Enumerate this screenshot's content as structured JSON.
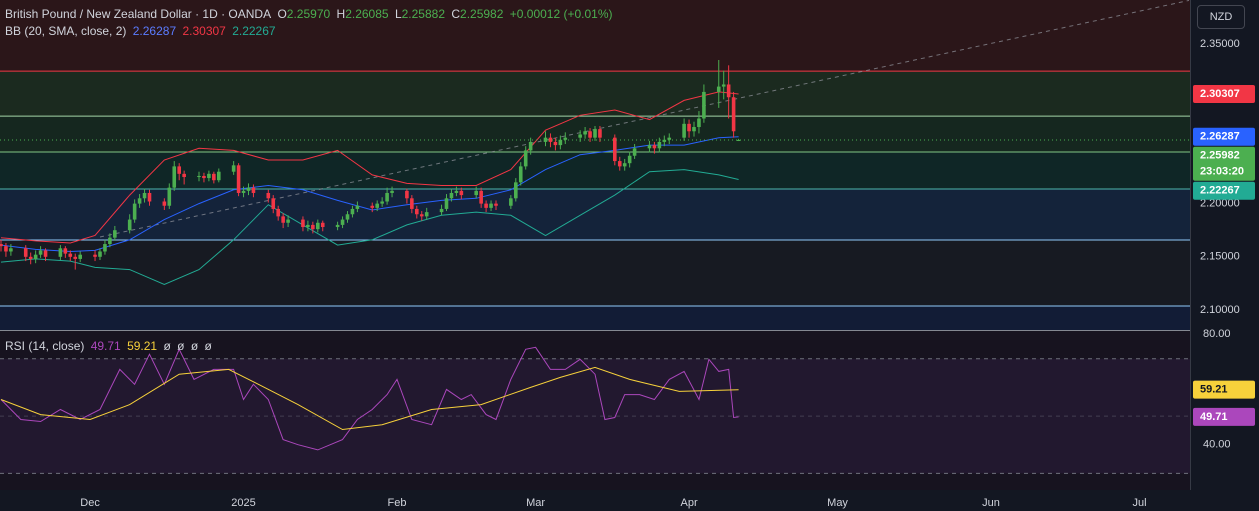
{
  "chart_data": [
    {
      "type": "candlestick",
      "title": "British Pound / New Zealand Dollar · 1D · OANDA",
      "ohlc_names": [
        "O",
        "H",
        "L",
        "C"
      ],
      "ohlc_values": [
        2.2597,
        2.26085,
        2.25882,
        2.25982
      ],
      "ohlc_value_labels": [
        "2.25970",
        "2.26085",
        "2.25882",
        "2.25982"
      ],
      "change": "+0.00012 (+0.01%)",
      "indicator": "BB (20, SMA, close, 2)",
      "currency": "NZD",
      "countdown": "23:03:20",
      "up_color": "#4caf50",
      "down_color": "#f23645",
      "xlim": [
        -18.2,
        222.2
      ],
      "ylim": [
        2.0812,
        2.3914
      ],
      "yticks": [
        {
          "value": 2.35,
          "label": "2.35000"
        },
        {
          "value": 2.2,
          "label": "2.20000"
        },
        {
          "value": 2.15,
          "label": "2.15000"
        },
        {
          "value": 2.1,
          "label": "2.10000"
        }
      ],
      "levels": [
        2.3246,
        2.2823,
        2.2485,
        2.2137,
        2.1658,
        2.1038
      ],
      "level_colors": [
        "#f23645",
        "#a5d6a7",
        "#81c784",
        "#4db6ac",
        "#90caf9",
        "#90caf9"
      ],
      "zone_colors": [
        "#2b1619",
        "#1b2a1f",
        "#15271f",
        "#0f2626",
        "#14233a",
        "#171a22",
        "#121c36"
      ],
      "trendline": [
        [
          2,
          2.1686
        ],
        [
          222,
          2.391
        ]
      ],
      "candles": [
        [
          -18,
          2.162,
          2.166,
          2.155,
          2.16
        ],
        [
          -17,
          2.16,
          2.163,
          2.15,
          2.155
        ],
        [
          -16,
          2.155,
          2.162,
          2.151,
          2.158
        ],
        [
          -13,
          2.158,
          2.161,
          2.146,
          2.15
        ],
        [
          -12,
          2.15,
          2.154,
          2.143,
          2.148
        ],
        [
          -11,
          2.148,
          2.156,
          2.144,
          2.152
        ],
        [
          -10,
          2.152,
          2.16,
          2.149,
          2.156
        ],
        [
          -9,
          2.156,
          2.158,
          2.146,
          2.15
        ],
        [
          -6,
          2.15,
          2.161,
          2.147,
          2.158
        ],
        [
          -5,
          2.158,
          2.16,
          2.149,
          2.153
        ],
        [
          -4,
          2.153,
          2.156,
          2.146,
          2.15
        ],
        [
          -3,
          2.15,
          2.153,
          2.138,
          2.148
        ],
        [
          -2,
          2.148,
          2.155,
          2.145,
          2.152
        ],
        [
          1,
          2.152,
          2.156,
          2.146,
          2.15
        ],
        [
          2,
          2.15,
          2.158,
          2.147,
          2.155
        ],
        [
          3,
          2.155,
          2.166,
          2.152,
          2.162
        ],
        [
          4,
          2.162,
          2.172,
          2.159,
          2.168
        ],
        [
          5,
          2.168,
          2.179,
          2.165,
          2.175
        ],
        [
          8,
          2.175,
          2.19,
          2.172,
          2.185
        ],
        [
          9,
          2.185,
          2.204,
          2.182,
          2.2
        ],
        [
          10,
          2.2,
          2.209,
          2.196,
          2.205
        ],
        [
          11,
          2.205,
          2.214,
          2.201,
          2.21
        ],
        [
          12,
          2.21,
          2.213,
          2.198,
          2.202
        ],
        [
          15,
          2.202,
          2.205,
          2.194,
          2.198
        ],
        [
          16,
          2.198,
          2.219,
          2.195,
          2.215
        ],
        [
          17,
          2.215,
          2.24,
          2.212,
          2.235
        ],
        [
          18,
          2.235,
          2.238,
          2.222,
          2.228
        ],
        [
          19,
          2.228,
          2.231,
          2.218,
          2.225
        ],
        [
          22,
          2.225,
          2.23,
          2.221,
          2.226
        ],
        [
          23,
          2.226,
          2.229,
          2.22,
          2.224
        ],
        [
          24,
          2.224,
          2.231,
          2.221,
          2.228
        ],
        [
          25,
          2.228,
          2.23,
          2.219,
          2.222
        ],
        [
          26,
          2.222,
          2.233,
          2.22,
          2.23
        ],
        [
          29,
          2.23,
          2.24,
          2.227,
          2.236
        ],
        [
          30,
          2.236,
          2.238,
          2.207,
          2.21
        ],
        [
          31,
          2.21,
          2.216,
          2.206,
          2.212
        ],
        [
          32,
          2.212,
          2.219,
          2.208,
          2.215
        ],
        [
          33,
          2.215,
          2.218,
          2.206,
          2.21
        ],
        [
          36,
          2.21,
          2.213,
          2.201,
          2.205
        ],
        [
          37,
          2.205,
          2.208,
          2.191,
          2.195
        ],
        [
          38,
          2.195,
          2.198,
          2.184,
          2.188
        ],
        [
          39,
          2.188,
          2.191,
          2.177,
          2.182
        ],
        [
          40,
          2.182,
          2.189,
          2.178,
          2.185
        ],
        [
          43,
          2.185,
          2.188,
          2.174,
          2.178
        ],
        [
          44,
          2.178,
          2.184,
          2.174,
          2.18
        ],
        [
          45,
          2.18,
          2.183,
          2.172,
          2.176
        ],
        [
          46,
          2.176,
          2.185,
          2.173,
          2.182
        ],
        [
          47,
          2.182,
          2.184,
          2.174,
          2.178
        ],
        [
          50,
          2.178,
          2.183,
          2.175,
          2.18
        ],
        [
          51,
          2.18,
          2.188,
          2.177,
          2.185
        ],
        [
          52,
          2.185,
          2.193,
          2.182,
          2.19
        ],
        [
          53,
          2.19,
          2.198,
          2.187,
          2.195
        ],
        [
          54,
          2.195,
          2.202,
          2.192,
          2.198
        ],
        [
          57,
          2.198,
          2.201,
          2.192,
          2.196
        ],
        [
          58,
          2.196,
          2.203,
          2.193,
          2.2
        ],
        [
          59,
          2.2,
          2.206,
          2.197,
          2.202
        ],
        [
          60,
          2.202,
          2.215,
          2.199,
          2.21
        ],
        [
          61,
          2.21,
          2.216,
          2.206,
          2.212
        ],
        [
          64,
          2.212,
          2.214,
          2.2,
          2.205
        ],
        [
          65,
          2.205,
          2.208,
          2.191,
          2.195
        ],
        [
          66,
          2.195,
          2.198,
          2.186,
          2.19
        ],
        [
          67,
          2.19,
          2.193,
          2.184,
          2.188
        ],
        [
          68,
          2.188,
          2.196,
          2.185,
          2.192
        ],
        [
          71,
          2.192,
          2.199,
          2.189,
          2.195
        ],
        [
          72,
          2.195,
          2.209,
          2.193,
          2.205
        ],
        [
          73,
          2.205,
          2.214,
          2.202,
          2.21
        ],
        [
          74,
          2.21,
          2.216,
          2.207,
          2.212
        ],
        [
          75,
          2.212,
          2.215,
          2.204,
          2.208
        ],
        [
          78,
          2.208,
          2.216,
          2.205,
          2.212
        ],
        [
          79,
          2.212,
          2.215,
          2.196,
          2.2
        ],
        [
          80,
          2.2,
          2.203,
          2.192,
          2.196
        ],
        [
          81,
          2.196,
          2.203,
          2.193,
          2.2
        ],
        [
          82,
          2.2,
          2.203,
          2.194,
          2.198
        ],
        [
          85,
          2.198,
          2.208,
          2.195,
          2.205
        ],
        [
          86,
          2.205,
          2.224,
          2.202,
          2.22
        ],
        [
          87,
          2.22,
          2.239,
          2.217,
          2.235
        ],
        [
          88,
          2.235,
          2.254,
          2.232,
          2.25
        ],
        [
          89,
          2.25,
          2.262,
          2.246,
          2.258
        ],
        [
          92,
          2.258,
          2.268,
          2.254,
          2.262
        ],
        [
          93,
          2.262,
          2.266,
          2.253,
          2.258
        ],
        [
          94,
          2.258,
          2.262,
          2.25,
          2.255
        ],
        [
          95,
          2.255,
          2.264,
          2.251,
          2.26
        ],
        [
          96,
          2.26,
          2.267,
          2.256,
          2.262
        ],
        [
          99,
          2.262,
          2.269,
          2.258,
          2.265
        ],
        [
          100,
          2.265,
          2.272,
          2.261,
          2.268
        ],
        [
          101,
          2.268,
          2.271,
          2.258,
          2.262
        ],
        [
          102,
          2.262,
          2.273,
          2.259,
          2.27
        ],
        [
          103,
          2.27,
          2.273,
          2.258,
          2.262
        ],
        [
          106,
          2.262,
          2.265,
          2.236,
          2.24
        ],
        [
          107,
          2.24,
          2.244,
          2.231,
          2.235
        ],
        [
          108,
          2.235,
          2.242,
          2.231,
          2.238
        ],
        [
          109,
          2.238,
          2.249,
          2.234,
          2.245
        ],
        [
          110,
          2.245,
          2.256,
          2.242,
          2.252
        ],
        [
          113,
          2.252,
          2.259,
          2.248,
          2.255
        ],
        [
          114,
          2.255,
          2.258,
          2.247,
          2.252
        ],
        [
          115,
          2.252,
          2.262,
          2.248,
          2.258
        ],
        [
          116,
          2.258,
          2.264,
          2.254,
          2.26
        ],
        [
          117,
          2.26,
          2.266,
          2.256,
          2.262
        ],
        [
          120,
          2.262,
          2.28,
          2.259,
          2.275
        ],
        [
          121,
          2.275,
          2.279,
          2.262,
          2.268
        ],
        [
          122,
          2.268,
          2.277,
          2.263,
          2.272
        ],
        [
          123,
          2.272,
          2.287,
          2.266,
          2.28
        ],
        [
          124,
          2.28,
          2.312,
          2.276,
          2.305
        ],
        [
          127,
          2.305,
          2.335,
          2.29,
          2.31
        ],
        [
          128,
          2.31,
          2.325,
          2.298,
          2.312
        ],
        [
          129,
          2.312,
          2.33,
          2.28,
          2.3
        ],
        [
          130,
          2.3,
          2.305,
          2.262,
          2.268
        ],
        [
          131,
          2.2597,
          2.26085,
          2.25882,
          2.25982
        ]
      ],
      "bands": {
        "x": [
          -18,
          -11,
          -4,
          1,
          8,
          15,
          22,
          29,
          36,
          43,
          50,
          57,
          64,
          71,
          78,
          85,
          92,
          99,
          106,
          113,
          120,
          127,
          131
        ],
        "basis": [
          2.161,
          2.157,
          2.155,
          2.156,
          2.166,
          2.185,
          2.2,
          2.213,
          2.217,
          2.213,
          2.203,
          2.194,
          2.199,
          2.203,
          2.205,
          2.213,
          2.232,
          2.246,
          2.25,
          2.255,
          2.255,
          2.262,
          2.26287
        ],
        "upper": [
          2.168,
          2.165,
          2.163,
          2.17,
          2.208,
          2.241,
          2.252,
          2.25,
          2.241,
          2.241,
          2.25,
          2.227,
          2.219,
          2.217,
          2.217,
          2.232,
          2.269,
          2.283,
          2.288,
          2.279,
          2.297,
          2.305,
          2.30307
        ],
        "lower": [
          2.145,
          2.148,
          2.146,
          2.14,
          2.138,
          2.124,
          2.138,
          2.166,
          2.199,
          2.18,
          2.161,
          2.166,
          2.18,
          2.189,
          2.192,
          2.189,
          2.17,
          2.189,
          2.208,
          2.23,
          2.232,
          2.227,
          2.22267
        ],
        "colors": [
          "#2962ff",
          "#f23645",
          "#22ab94"
        ],
        "last": [
          2.26287,
          2.30307,
          2.22267
        ],
        "last_labels": [
          "2.26287",
          "2.30307",
          "2.22267"
        ]
      }
    },
    {
      "type": "line",
      "title": "RSI (14, close)",
      "placeholders": [
        "ø",
        "ø",
        "ø",
        "ø"
      ],
      "xlim": [
        -18.2,
        222.2
      ],
      "ylim": [
        24.2,
        80.04
      ],
      "yticks": [
        {
          "value": 80,
          "label": "80.00"
        },
        {
          "value": 40,
          "label": "40.00"
        }
      ],
      "levels": [
        70,
        50,
        30
      ],
      "xticks": [
        {
          "value": 0,
          "label": "Dec"
        },
        {
          "value": 31,
          "label": "2025"
        },
        {
          "value": 62,
          "label": "Feb"
        },
        {
          "value": 90,
          "label": "Mar"
        },
        {
          "value": 121,
          "label": "Apr"
        },
        {
          "value": 151,
          "label": "May"
        },
        {
          "value": 182,
          "label": "Jun"
        },
        {
          "value": 212,
          "label": "Jul"
        }
      ],
      "series": [
        {
          "color": "#ab47bc",
          "x": [
            -18,
            -14,
            -10,
            -6,
            -2,
            2,
            6,
            9,
            12,
            15,
            18,
            21,
            25,
            29,
            31,
            33,
            36,
            39,
            42,
            46,
            51,
            54,
            57,
            60,
            62,
            65,
            69,
            72,
            75,
            77,
            80,
            82,
            85,
            88,
            90,
            93,
            96,
            99,
            102,
            104,
            106,
            108,
            111,
            114,
            117,
            120,
            123,
            125,
            127,
            129,
            130,
            131
          ],
          "values": [
            55.8,
            48.8,
            48.1,
            52.3,
            48.8,
            52.3,
            66.3,
            61.1,
            71.6,
            61.1,
            73.3,
            62.8,
            66.3,
            66.3,
            55.8,
            61.1,
            55.8,
            41.8,
            40.0,
            38.2,
            41.8,
            48.8,
            52.3,
            57.5,
            62.8,
            48.8,
            47.0,
            59.3,
            55.8,
            57.5,
            50.5,
            48.8,
            62.8,
            73.3,
            74.0,
            66.3,
            66.3,
            69.8,
            64.6,
            48.8,
            49.5,
            57.5,
            57.5,
            55.8,
            62.8,
            65.6,
            55.8,
            69.8,
            65.6,
            66.3,
            49.5,
            49.71
          ],
          "last": 49.71,
          "last_label": "49.71"
        },
        {
          "color": "#f7d13b",
          "x": [
            -18,
            -10,
            0,
            8,
            18,
            28,
            34,
            42,
            51,
            59,
            69,
            79,
            89,
            95,
            102,
            109,
            119,
            131
          ],
          "values": [
            55.8,
            50.5,
            48.8,
            54.0,
            64.6,
            66.3,
            61.1,
            54.0,
            45.3,
            47.0,
            52.3,
            54.0,
            60.0,
            63.5,
            67.0,
            62.8,
            58.6,
            59.21
          ],
          "last": 59.21,
          "last_label": "59.21"
        }
      ]
    }
  ]
}
